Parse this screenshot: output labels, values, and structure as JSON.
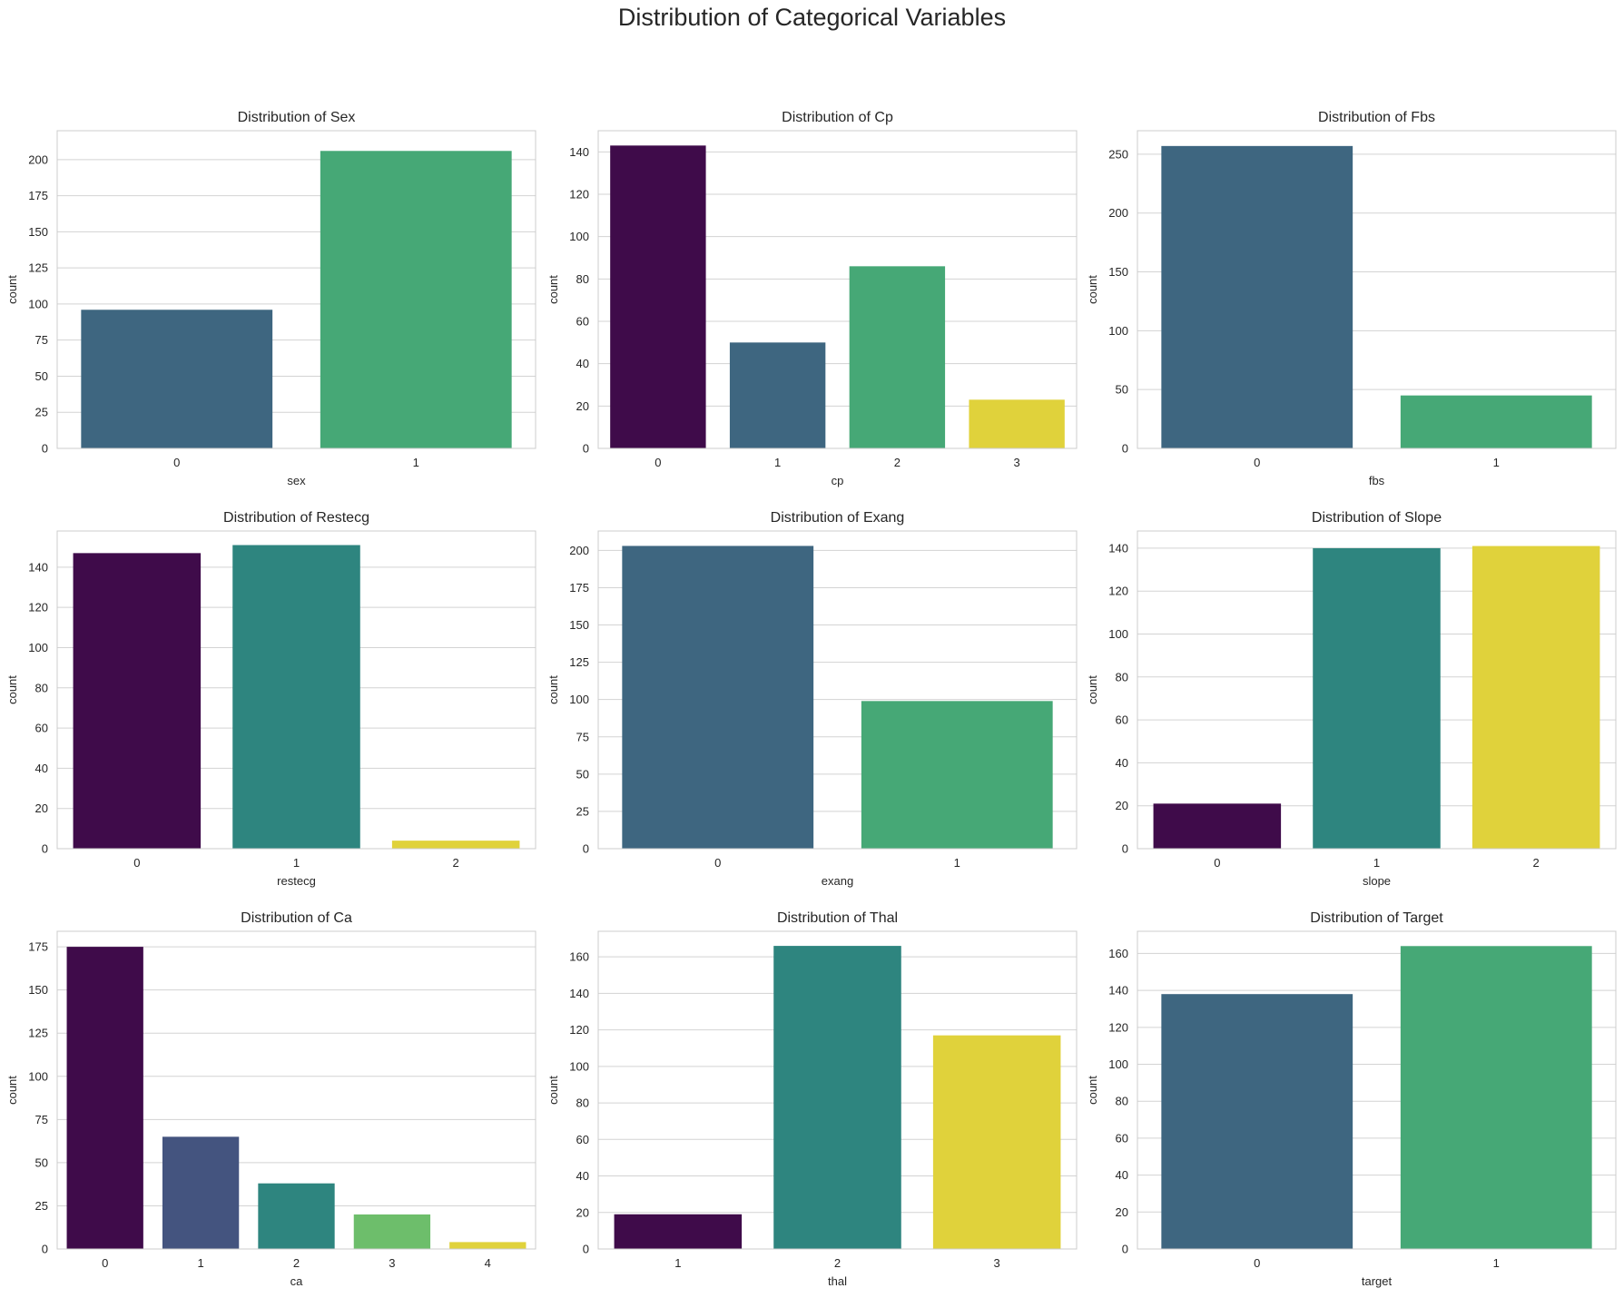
{
  "suptitle": "Distribution of Categorical Variables",
  "chart_data": [
    {
      "type": "bar",
      "title": "Distribution of Sex",
      "xlabel": "sex",
      "ylabel": "count",
      "categories": [
        "0",
        "1"
      ],
      "values": [
        96,
        206
      ],
      "ylim": [
        0,
        220
      ],
      "yticks": [
        0,
        25,
        50,
        75,
        100,
        125,
        150,
        175,
        200
      ],
      "colors": [
        "#3e6680",
        "#46a876"
      ]
    },
    {
      "type": "bar",
      "title": "Distribution of Cp",
      "xlabel": "cp",
      "ylabel": "count",
      "categories": [
        "0",
        "1",
        "2",
        "3"
      ],
      "values": [
        143,
        50,
        86,
        23
      ],
      "ylim": [
        0,
        150
      ],
      "yticks": [
        0,
        20,
        40,
        60,
        80,
        100,
        120,
        140
      ],
      "colors": [
        "#3f0b4a",
        "#3e6680",
        "#46a876",
        "#e0d23b"
      ]
    },
    {
      "type": "bar",
      "title": "Distribution of Fbs",
      "xlabel": "fbs",
      "ylabel": "count",
      "categories": [
        "0",
        "1"
      ],
      "values": [
        257,
        45
      ],
      "ylim": [
        0,
        270
      ],
      "yticks": [
        0,
        50,
        100,
        150,
        200,
        250
      ],
      "colors": [
        "#3e6680",
        "#46a876"
      ]
    },
    {
      "type": "bar",
      "title": "Distribution of Restecg",
      "xlabel": "restecg",
      "ylabel": "count",
      "categories": [
        "0",
        "1",
        "2"
      ],
      "values": [
        147,
        151,
        4
      ],
      "ylim": [
        0,
        158
      ],
      "yticks": [
        0,
        20,
        40,
        60,
        80,
        100,
        120,
        140
      ],
      "colors": [
        "#3f0b4a",
        "#2e857f",
        "#e0d23b"
      ]
    },
    {
      "type": "bar",
      "title": "Distribution of Exang",
      "xlabel": "exang",
      "ylabel": "count",
      "categories": [
        "0",
        "1"
      ],
      "values": [
        203,
        99
      ],
      "ylim": [
        0,
        213
      ],
      "yticks": [
        0,
        25,
        50,
        75,
        100,
        125,
        150,
        175,
        200
      ],
      "colors": [
        "#3e6680",
        "#46a876"
      ]
    },
    {
      "type": "bar",
      "title": "Distribution of Slope",
      "xlabel": "slope",
      "ylabel": "count",
      "categories": [
        "0",
        "1",
        "2"
      ],
      "values": [
        21,
        140,
        141
      ],
      "ylim": [
        0,
        148
      ],
      "yticks": [
        0,
        20,
        40,
        60,
        80,
        100,
        120,
        140
      ],
      "colors": [
        "#3f0b4a",
        "#2e857f",
        "#e0d23b"
      ]
    },
    {
      "type": "bar",
      "title": "Distribution of Ca",
      "xlabel": "ca",
      "ylabel": "count",
      "categories": [
        "0",
        "1",
        "2",
        "3",
        "4"
      ],
      "values": [
        175,
        65,
        38,
        20,
        4
      ],
      "ylim": [
        0,
        184
      ],
      "yticks": [
        0,
        25,
        50,
        75,
        100,
        125,
        150,
        175
      ],
      "colors": [
        "#3f0b4a",
        "#44547f",
        "#2e857f",
        "#6dbe6b",
        "#e0d23b"
      ]
    },
    {
      "type": "bar",
      "title": "Distribution of Thal",
      "xlabel": "thal",
      "ylabel": "count",
      "categories": [
        "1",
        "2",
        "3"
      ],
      "values": [
        19,
        166,
        117
      ],
      "ylim": [
        0,
        174
      ],
      "yticks": [
        0,
        20,
        40,
        60,
        80,
        100,
        120,
        140,
        160
      ],
      "colors": [
        "#3f0b4a",
        "#2e857f",
        "#e0d23b"
      ]
    },
    {
      "type": "bar",
      "title": "Distribution of Target",
      "xlabel": "target",
      "ylabel": "count",
      "categories": [
        "0",
        "1"
      ],
      "values": [
        138,
        164
      ],
      "ylim": [
        0,
        172
      ],
      "yticks": [
        0,
        20,
        40,
        60,
        80,
        100,
        120,
        140,
        160
      ],
      "colors": [
        "#3e6680",
        "#46a876"
      ]
    }
  ]
}
